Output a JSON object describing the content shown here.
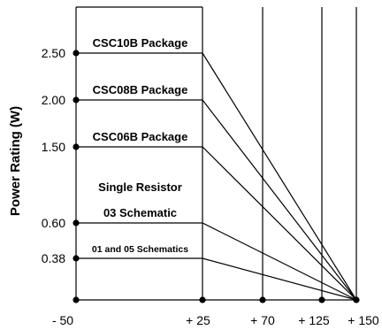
{
  "chart_data": {
    "type": "line",
    "title": "",
    "xlabel": "",
    "ylabel": "Power Rating (W)",
    "xlim": [
      -50,
      150
    ],
    "ylim": [
      0,
      2.5
    ],
    "x_ticks": [
      -50,
      25,
      70,
      125,
      150
    ],
    "x_tick_labels": [
      "- 50",
      "+ 25",
      "+ 70",
      "+ 125",
      "+ 150"
    ],
    "y_ticks": [
      2.5,
      2.0,
      1.5,
      0.6,
      0.38
    ],
    "y_tick_labels": [
      "2.50",
      "2.00",
      "1.50",
      "0.60",
      "0.38"
    ],
    "grid": "vertical lines at x ticks",
    "annotations": [
      "Single Resistor"
    ],
    "series": [
      {
        "name": "CSC10B Package",
        "points": [
          [
            -50,
            2.5
          ],
          [
            25,
            2.5
          ],
          [
            150,
            0
          ]
        ]
      },
      {
        "name": "CSC08B Package",
        "points": [
          [
            -50,
            2.0
          ],
          [
            25,
            2.0
          ],
          [
            150,
            0
          ]
        ]
      },
      {
        "name": "CSC06B Package",
        "points": [
          [
            -50,
            1.5
          ],
          [
            25,
            1.5
          ],
          [
            150,
            0
          ]
        ]
      },
      {
        "name": "03 Schematic",
        "points": [
          [
            -50,
            0.6
          ],
          [
            25,
            0.6
          ],
          [
            150,
            0
          ]
        ]
      },
      {
        "name": "01 and 05 Schematics",
        "points": [
          [
            -50,
            0.38
          ],
          [
            25,
            0.38
          ],
          [
            150,
            0
          ]
        ]
      }
    ]
  }
}
